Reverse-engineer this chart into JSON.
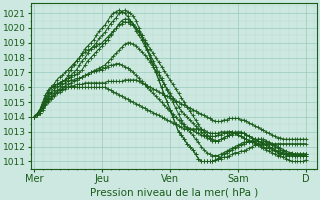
{
  "title": "Pression niveau de la mer( hPa )",
  "bg_color": "#cce8e0",
  "line_color": "#1a5c1a",
  "marker_color": "#1a5c1a",
  "grid_major_color": "#99ccbb",
  "grid_minor_color": "#bbddcc",
  "yticks": [
    1011,
    1012,
    1013,
    1014,
    1015,
    1016,
    1017,
    1018,
    1019,
    1020,
    1021
  ],
  "ylim": [
    1010.5,
    1021.7
  ],
  "xtick_labels": [
    "Mer",
    "Jeu",
    "Ven",
    "Sam",
    "D"
  ],
  "xtick_positions": [
    0,
    24,
    48,
    72,
    96
  ],
  "xlim": [
    -1,
    100
  ],
  "lines": [
    {
      "y": [
        1014.0,
        1014.2,
        1014.5,
        1015.0,
        1015.5,
        1015.8,
        1016.0,
        1016.1,
        1016.2,
        1016.3,
        1016.4,
        1016.5,
        1016.8,
        1017.2,
        1017.5,
        1017.8,
        1018.0,
        1018.3,
        1018.6,
        1018.8,
        1019.0,
        1019.2,
        1019.5,
        1019.8,
        1020.0,
        1020.2,
        1020.5,
        1020.8,
        1021.0,
        1021.1,
        1021.2,
        1021.1,
        1021.0,
        1020.8,
        1020.5,
        1020.2,
        1019.8,
        1019.5,
        1019.2,
        1018.8,
        1018.5,
        1018.0,
        1017.5,
        1017.0,
        1016.5,
        1016.0,
        1015.5,
        1015.0,
        1014.5,
        1014.0,
        1013.5,
        1013.0,
        1012.8,
        1012.5,
        1012.2,
        1012.0,
        1011.8,
        1011.5,
        1011.2,
        1011.0,
        1011.0,
        1011.0,
        1011.0,
        1011.0,
        1011.1,
        1011.2,
        1011.2,
        1011.3,
        1011.3,
        1011.4,
        1011.5,
        1011.6,
        1011.6,
        1011.7,
        1011.7,
        1011.8,
        1011.9,
        1012.0,
        1012.1,
        1012.1,
        1012.0,
        1011.9,
        1011.8,
        1011.7,
        1011.6,
        1011.5,
        1011.4,
        1011.4,
        1011.3,
        1011.2,
        1011.1,
        1011.0,
        1011.0,
        1011.0,
        1011.0,
        1011.0,
        1011.1
      ]
    },
    {
      "y": [
        1014.0,
        1014.2,
        1014.4,
        1014.8,
        1015.2,
        1015.6,
        1016.0,
        1016.1,
        1016.2,
        1016.3,
        1016.4,
        1016.5,
        1016.6,
        1016.8,
        1017.0,
        1017.2,
        1017.5,
        1017.8,
        1018.0,
        1018.3,
        1018.6,
        1018.8,
        1019.0,
        1019.3,
        1019.5,
        1019.7,
        1020.0,
        1020.3,
        1020.5,
        1020.7,
        1021.0,
        1021.1,
        1021.2,
        1021.1,
        1021.0,
        1020.8,
        1020.5,
        1020.0,
        1019.5,
        1019.0,
        1018.5,
        1018.0,
        1017.5,
        1017.0,
        1016.5,
        1016.0,
        1015.5,
        1015.0,
        1014.5,
        1014.0,
        1013.5,
        1013.0,
        1012.8,
        1012.5,
        1012.2,
        1012.0,
        1011.8,
        1011.5,
        1011.2,
        1011.0,
        1011.0,
        1011.0,
        1011.0,
        1011.0,
        1011.1,
        1011.2,
        1011.3,
        1011.5,
        1011.6,
        1011.7,
        1011.8,
        1011.9,
        1012.0,
        1012.1,
        1012.2,
        1012.3,
        1012.3,
        1012.4,
        1012.4,
        1012.5,
        1012.5,
        1012.4,
        1012.3,
        1012.2,
        1012.1,
        1012.0,
        1011.9,
        1011.8,
        1011.7,
        1011.6,
        1011.5,
        1011.5,
        1011.4,
        1011.4,
        1011.4,
        1011.4,
        1011.4
      ]
    },
    {
      "y": [
        1014.0,
        1014.2,
        1014.4,
        1014.8,
        1015.1,
        1015.4,
        1015.7,
        1016.0,
        1016.2,
        1016.3,
        1016.4,
        1016.5,
        1016.6,
        1016.7,
        1016.8,
        1016.9,
        1017.0,
        1017.2,
        1017.5,
        1017.8,
        1018.0,
        1018.2,
        1018.4,
        1018.6,
        1018.8,
        1019.0,
        1019.2,
        1019.5,
        1019.8,
        1020.0,
        1020.3,
        1020.5,
        1020.6,
        1020.6,
        1020.5,
        1020.3,
        1020.0,
        1019.7,
        1019.4,
        1019.0,
        1018.6,
        1018.2,
        1017.8,
        1017.4,
        1017.0,
        1016.6,
        1016.2,
        1015.8,
        1015.4,
        1015.0,
        1014.6,
        1014.2,
        1013.8,
        1013.5,
        1013.2,
        1013.0,
        1012.8,
        1012.5,
        1012.3,
        1012.0,
        1011.8,
        1011.6,
        1011.5,
        1011.4,
        1011.4,
        1011.4,
        1011.5,
        1011.6,
        1011.7,
        1011.8,
        1011.9,
        1012.0,
        1012.1,
        1012.2,
        1012.3,
        1012.3,
        1012.4,
        1012.4,
        1012.5,
        1012.5,
        1012.5,
        1012.5,
        1012.4,
        1012.3,
        1012.2,
        1012.1,
        1012.0,
        1011.9,
        1011.8,
        1011.7,
        1011.6,
        1011.6,
        1011.5,
        1011.5,
        1011.5,
        1011.5,
        1011.5
      ]
    },
    {
      "y": [
        1014.0,
        1014.2,
        1014.4,
        1014.7,
        1015.0,
        1015.3,
        1015.6,
        1015.8,
        1016.0,
        1016.1,
        1016.2,
        1016.3,
        1016.4,
        1016.5,
        1016.5,
        1016.6,
        1016.6,
        1016.7,
        1016.8,
        1016.9,
        1017.0,
        1017.1,
        1017.2,
        1017.3,
        1017.4,
        1017.5,
        1017.7,
        1017.9,
        1018.1,
        1018.3,
        1018.5,
        1018.7,
        1018.9,
        1019.0,
        1019.0,
        1018.9,
        1018.8,
        1018.6,
        1018.4,
        1018.2,
        1018.0,
        1017.7,
        1017.4,
        1017.1,
        1016.8,
        1016.5,
        1016.2,
        1015.9,
        1015.6,
        1015.3,
        1015.0,
        1014.7,
        1014.4,
        1014.2,
        1014.0,
        1013.8,
        1013.6,
        1013.4,
        1013.2,
        1013.0,
        1012.8,
        1012.6,
        1012.5,
        1012.4,
        1012.4,
        1012.4,
        1012.5,
        1012.6,
        1012.7,
        1012.8,
        1012.9,
        1013.0,
        1013.0,
        1013.0,
        1012.9,
        1012.8,
        1012.7,
        1012.6,
        1012.5,
        1012.4,
        1012.3,
        1012.2,
        1012.1,
        1012.0,
        1011.9,
        1011.8,
        1011.7,
        1011.6,
        1011.6,
        1011.5,
        1011.5,
        1011.5,
        1011.5,
        1011.5,
        1011.5,
        1011.5,
        1011.5
      ]
    },
    {
      "y": [
        1014.0,
        1014.1,
        1014.3,
        1014.6,
        1014.9,
        1015.1,
        1015.3,
        1015.5,
        1015.7,
        1015.8,
        1015.9,
        1016.0,
        1016.0,
        1016.1,
        1016.1,
        1016.2,
        1016.2,
        1016.2,
        1016.3,
        1016.3,
        1016.3,
        1016.3,
        1016.3,
        1016.3,
        1016.3,
        1016.3,
        1016.4,
        1016.4,
        1016.4,
        1016.4,
        1016.4,
        1016.4,
        1016.5,
        1016.5,
        1016.5,
        1016.5,
        1016.5,
        1016.4,
        1016.3,
        1016.2,
        1016.1,
        1016.0,
        1015.9,
        1015.8,
        1015.7,
        1015.6,
        1015.5,
        1015.4,
        1015.3,
        1015.2,
        1015.1,
        1015.0,
        1014.9,
        1014.8,
        1014.7,
        1014.6,
        1014.5,
        1014.4,
        1014.3,
        1014.2,
        1014.1,
        1014.0,
        1013.9,
        1013.8,
        1013.7,
        1013.7,
        1013.7,
        1013.8,
        1013.8,
        1013.9,
        1013.9,
        1013.9,
        1013.9,
        1013.8,
        1013.8,
        1013.7,
        1013.6,
        1013.5,
        1013.4,
        1013.3,
        1013.2,
        1013.1,
        1013.0,
        1012.9,
        1012.8,
        1012.7,
        1012.6,
        1012.6,
        1012.5,
        1012.5,
        1012.5,
        1012.5,
        1012.5,
        1012.5,
        1012.5,
        1012.5,
        1012.5
      ]
    },
    {
      "y": [
        1014.0,
        1014.1,
        1014.3,
        1014.5,
        1014.8,
        1015.0,
        1015.2,
        1015.4,
        1015.6,
        1015.7,
        1015.8,
        1015.9,
        1016.0,
        1016.0,
        1016.0,
        1016.0,
        1016.0,
        1016.0,
        1016.0,
        1016.0,
        1016.0,
        1016.0,
        1016.0,
        1016.0,
        1016.0,
        1016.0,
        1015.9,
        1015.8,
        1015.7,
        1015.6,
        1015.5,
        1015.4,
        1015.3,
        1015.2,
        1015.1,
        1015.0,
        1014.9,
        1014.8,
        1014.7,
        1014.6,
        1014.5,
        1014.4,
        1014.3,
        1014.2,
        1014.1,
        1014.0,
        1013.9,
        1013.8,
        1013.7,
        1013.6,
        1013.5,
        1013.4,
        1013.3,
        1013.2,
        1013.2,
        1013.2,
        1013.2,
        1013.2,
        1013.2,
        1013.2,
        1013.1,
        1013.0,
        1012.9,
        1012.9,
        1012.9,
        1012.9,
        1013.0,
        1013.0,
        1013.0,
        1013.0,
        1013.0,
        1012.9,
        1012.8,
        1012.7,
        1012.6,
        1012.5,
        1012.4,
        1012.3,
        1012.3,
        1012.2,
        1012.2,
        1012.2,
        1012.2,
        1012.2,
        1012.2,
        1012.2,
        1012.2,
        1012.2,
        1012.2,
        1012.2,
        1012.2,
        1012.2,
        1012.2,
        1012.2,
        1012.2,
        1012.2,
        1012.2
      ]
    },
    {
      "y": [
        1014.0,
        1014.2,
        1014.5,
        1014.9,
        1015.3,
        1015.7,
        1016.0,
        1016.2,
        1016.5,
        1016.7,
        1016.8,
        1017.0,
        1017.2,
        1017.4,
        1017.6,
        1017.8,
        1018.0,
        1018.2,
        1018.4,
        1018.5,
        1018.6,
        1018.7,
        1018.8,
        1018.9,
        1019.0,
        1019.2,
        1019.4,
        1019.6,
        1019.8,
        1020.0,
        1020.2,
        1020.3,
        1020.4,
        1020.4,
        1020.3,
        1020.2,
        1020.0,
        1019.8,
        1019.5,
        1019.2,
        1018.9,
        1018.6,
        1018.3,
        1018.0,
        1017.7,
        1017.4,
        1017.1,
        1016.8,
        1016.5,
        1016.2,
        1015.9,
        1015.6,
        1015.3,
        1015.0,
        1014.7,
        1014.4,
        1014.1,
        1013.8,
        1013.5,
        1013.2,
        1013.0,
        1012.8,
        1012.6,
        1012.5,
        1012.4,
        1012.4,
        1012.5,
        1012.6,
        1012.7,
        1012.8,
        1012.8,
        1012.9,
        1012.9,
        1012.9,
        1012.9,
        1012.8,
        1012.7,
        1012.6,
        1012.5,
        1012.4,
        1012.3,
        1012.2,
        1012.1,
        1012.0,
        1011.9,
        1011.8,
        1011.7,
        1011.6,
        1011.6,
        1011.5,
        1011.5,
        1011.5,
        1011.5,
        1011.5,
        1011.5,
        1011.5,
        1011.5
      ]
    },
    {
      "y": [
        1014.0,
        1014.1,
        1014.3,
        1014.6,
        1014.9,
        1015.2,
        1015.4,
        1015.6,
        1015.8,
        1015.9,
        1016.0,
        1016.1,
        1016.2,
        1016.3,
        1016.4,
        1016.5,
        1016.6,
        1016.7,
        1016.8,
        1016.9,
        1017.0,
        1017.1,
        1017.1,
        1017.2,
        1017.2,
        1017.3,
        1017.4,
        1017.5,
        1017.5,
        1017.6,
        1017.6,
        1017.5,
        1017.4,
        1017.3,
        1017.2,
        1017.0,
        1016.8,
        1016.6,
        1016.4,
        1016.2,
        1016.0,
        1015.8,
        1015.6,
        1015.4,
        1015.2,
        1015.0,
        1014.8,
        1014.6,
        1014.4,
        1014.2,
        1014.0,
        1013.8,
        1013.6,
        1013.4,
        1013.3,
        1013.2,
        1013.1,
        1013.0,
        1012.9,
        1012.8,
        1012.7,
        1012.7,
        1012.7,
        1012.7,
        1012.7,
        1012.8,
        1012.8,
        1012.9,
        1012.9,
        1013.0,
        1013.0,
        1012.9,
        1012.8,
        1012.7,
        1012.6,
        1012.5,
        1012.4,
        1012.3,
        1012.2,
        1012.2,
        1012.1,
        1012.0,
        1011.9,
        1011.9,
        1011.8,
        1011.7,
        1011.6,
        1011.5,
        1011.5,
        1011.4,
        1011.4,
        1011.4,
        1011.4,
        1011.4,
        1011.4,
        1011.4,
        1011.4
      ]
    }
  ]
}
